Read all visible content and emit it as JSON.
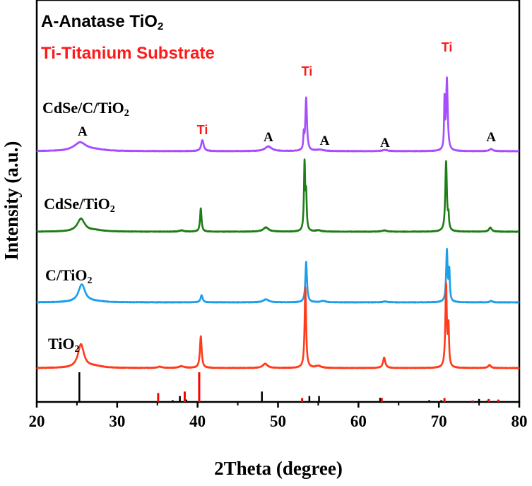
{
  "chart_data": {
    "type": "line",
    "xlabel": "2Theta (degree)",
    "ylabel": "Intensity (a.u.)",
    "xlim": [
      20,
      80
    ],
    "x_ticks": [
      "20",
      "30",
      "40",
      "50",
      "60",
      "70",
      "80"
    ],
    "legend": [
      {
        "text_main": "A-Anatase TiO",
        "text_sub": "2",
        "color": "#000000"
      },
      {
        "text_main": "Ti-Titanium Substrate",
        "text_sub": "",
        "color": "#ff1a1a"
      }
    ],
    "series": [
      {
        "name_main": "CdSe/C/TiO",
        "name_sub": "2",
        "color": "#a64dff",
        "baseline": 0.44,
        "noise": 0.006,
        "peaks": [
          {
            "x": 25.4,
            "h": 0.2,
            "w": 0.9
          },
          {
            "x": 27.3,
            "h": 0.03,
            "w": 1.5
          },
          {
            "x": 40.6,
            "h": 0.26,
            "w": 0.18
          },
          {
            "x": 48.8,
            "h": 0.11,
            "w": 0.5
          },
          {
            "x": 53.2,
            "h": 0.34,
            "w": 0.06
          },
          {
            "x": 53.5,
            "h": 1.25,
            "w": 0.12
          },
          {
            "x": 55.2,
            "h": 0.03,
            "w": 0.6
          },
          {
            "x": 63.3,
            "h": 0.03,
            "w": 0.4
          },
          {
            "x": 70.7,
            "h": 1.12,
            "w": 0.06
          },
          {
            "x": 71.0,
            "h": 1.7,
            "w": 0.12
          },
          {
            "x": 76.5,
            "h": 0.05,
            "w": 0.25
          }
        ]
      },
      {
        "name_main": "CdSe/TiO",
        "name_sub": "2",
        "color": "#1e7d16",
        "baseline": 0.44,
        "noise": 0.006,
        "peaks": [
          {
            "x": 25.5,
            "h": 0.3,
            "w": 0.55
          },
          {
            "x": 27.3,
            "h": 0.03,
            "w": 1.2
          },
          {
            "x": 40.4,
            "h": 0.55,
            "w": 0.11
          },
          {
            "x": 38.0,
            "h": 0.03,
            "w": 0.3
          },
          {
            "x": 48.5,
            "h": 0.1,
            "w": 0.4
          },
          {
            "x": 53.3,
            "h": 1.6,
            "w": 0.09
          },
          {
            "x": 53.5,
            "h": 0.8,
            "w": 0.08
          },
          {
            "x": 55.0,
            "h": 0.03,
            "w": 0.4
          },
          {
            "x": 63.2,
            "h": 0.03,
            "w": 0.35
          },
          {
            "x": 70.9,
            "h": 1.65,
            "w": 0.12
          },
          {
            "x": 71.2,
            "h": 0.3,
            "w": 0.07
          },
          {
            "x": 76.4,
            "h": 0.1,
            "w": 0.2
          }
        ]
      },
      {
        "name_main": "C/TiO",
        "name_sub": "2",
        "color": "#1f9ee8",
        "baseline": 0.44,
        "noise": 0.006,
        "peaks": [
          {
            "x": 25.6,
            "h": 0.42,
            "w": 0.5
          },
          {
            "x": 27.3,
            "h": 0.02,
            "w": 1.2
          },
          {
            "x": 40.5,
            "h": 0.17,
            "w": 0.15
          },
          {
            "x": 48.5,
            "h": 0.07,
            "w": 0.4
          },
          {
            "x": 53.5,
            "h": 0.95,
            "w": 0.12
          },
          {
            "x": 55.6,
            "h": 0.03,
            "w": 0.4
          },
          {
            "x": 63.3,
            "h": 0.02,
            "w": 0.35
          },
          {
            "x": 71.0,
            "h": 1.22,
            "w": 0.11
          },
          {
            "x": 71.3,
            "h": 0.7,
            "w": 0.08
          },
          {
            "x": 76.5,
            "h": 0.03,
            "w": 0.2
          }
        ]
      },
      {
        "name_main": "TiO",
        "name_sub": "2",
        "color": "#ff3b1a",
        "baseline": 0.44,
        "noise": 0.006,
        "peaks": [
          {
            "x": 25.5,
            "h": 0.55,
            "w": 0.45
          },
          {
            "x": 27.2,
            "h": 0.04,
            "w": 1.1
          },
          {
            "x": 35.3,
            "h": 0.03,
            "w": 0.3
          },
          {
            "x": 38.0,
            "h": 0.04,
            "w": 0.4
          },
          {
            "x": 40.4,
            "h": 0.75,
            "w": 0.13
          },
          {
            "x": 48.4,
            "h": 0.1,
            "w": 0.35
          },
          {
            "x": 53.4,
            "h": 1.9,
            "w": 0.11
          },
          {
            "x": 55.0,
            "h": 0.05,
            "w": 0.4
          },
          {
            "x": 63.2,
            "h": 0.25,
            "w": 0.17
          },
          {
            "x": 70.9,
            "h": 1.95,
            "w": 0.11
          },
          {
            "x": 71.2,
            "h": 0.9,
            "w": 0.08
          },
          {
            "x": 76.3,
            "h": 0.07,
            "w": 0.2
          }
        ]
      }
    ],
    "peak_annotations": [
      {
        "text": "A",
        "type": "anatase",
        "x": 25.7,
        "series": 0
      },
      {
        "text": "Ti",
        "type": "titanium",
        "x": 40.6,
        "series": 0
      },
      {
        "text": "A",
        "type": "anatase",
        "x": 48.8,
        "series": 0
      },
      {
        "text": "Ti",
        "type": "titanium",
        "x": 53.6,
        "series": 0
      },
      {
        "text": "A",
        "type": "anatase",
        "x": 55.8,
        "series": 0
      },
      {
        "text": "A",
        "type": "anatase",
        "x": 63.3,
        "series": 0
      },
      {
        "text": "Ti",
        "type": "titanium",
        "x": 71.0,
        "series": 0
      },
      {
        "text": "A",
        "type": "anatase",
        "x": 76.5,
        "series": 0
      }
    ],
    "reference_lines": {
      "anatase": {
        "color": "#000000",
        "positions": [
          {
            "x": 25.3,
            "h": 1.0
          },
          {
            "x": 36.9,
            "h": 0.06
          },
          {
            "x": 37.8,
            "h": 0.2
          },
          {
            "x": 38.6,
            "h": 0.08
          },
          {
            "x": 48.0,
            "h": 0.35
          },
          {
            "x": 53.9,
            "h": 0.2
          },
          {
            "x": 55.1,
            "h": 0.2
          },
          {
            "x": 62.7,
            "h": 0.14
          },
          {
            "x": 68.8,
            "h": 0.06
          },
          {
            "x": 70.3,
            "h": 0.06
          },
          {
            "x": 75.0,
            "h": 0.1
          },
          {
            "x": 76.0,
            "h": 0.04
          }
        ]
      },
      "titanium": {
        "color": "#ff0000",
        "positions": [
          {
            "x": 35.1,
            "h": 0.3
          },
          {
            "x": 38.4,
            "h": 0.35
          },
          {
            "x": 40.2,
            "h": 1.0
          },
          {
            "x": 53.0,
            "h": 0.13
          },
          {
            "x": 62.9,
            "h": 0.13
          },
          {
            "x": 70.7,
            "h": 0.13
          },
          {
            "x": 74.2,
            "h": 0.05
          },
          {
            "x": 76.2,
            "h": 0.1
          },
          {
            "x": 77.4,
            "h": 0.08
          }
        ]
      }
    }
  }
}
